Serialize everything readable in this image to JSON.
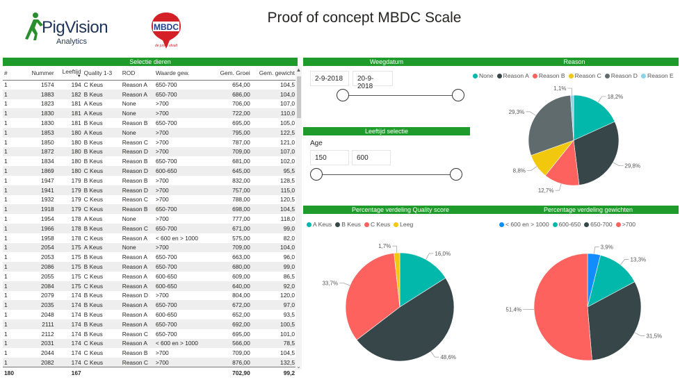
{
  "title": "Proof of concept MBDC Scale",
  "logos": {
    "pigvision_name": "PigVision",
    "pigvision_sub": "Analytics",
    "mbdc_name": "MBDC",
    "mbdc_tagline": "de juiste afvalt"
  },
  "sections": {
    "selectie": "Selectie dieren",
    "weegdatum": "Weegdatum",
    "reason": "Reason",
    "leeftijd": "Leeftijd selectie",
    "quality": "Percentage verdeling Quality score",
    "gewichten": "Percentage verdeling gewichten"
  },
  "table": {
    "headers": [
      "#",
      "Nummer",
      "Leeftijd",
      "Quality 1-3",
      "ROD",
      "Waarde gew.",
      "Gem. Groei",
      "Gem. gewicht"
    ],
    "rows": [
      [
        "1",
        "1574",
        "194",
        "C Keus",
        "Reason A",
        "650-700",
        "654,00",
        "104,5"
      ],
      [
        "1",
        "1883",
        "182",
        "B Keus",
        "Reason A",
        "650-700",
        "686,00",
        "104,0"
      ],
      [
        "1",
        "1823",
        "181",
        "A Keus",
        "None",
        ">700",
        "706,00",
        "107,0"
      ],
      [
        "1",
        "1830",
        "181",
        "A Keus",
        "None",
        ">700",
        "722,00",
        "110,0"
      ],
      [
        "1",
        "1830",
        "181",
        "B Keus",
        "Reason B",
        "650-700",
        "695,00",
        "105,0"
      ],
      [
        "1",
        "1853",
        "180",
        "A Keus",
        "None",
        ">700",
        "795,00",
        "122,5"
      ],
      [
        "1",
        "1850",
        "180",
        "B Keus",
        "Reason C",
        ">700",
        "787,00",
        "121,0"
      ],
      [
        "1",
        "1872",
        "180",
        "B Keus",
        "Reason D",
        ">700",
        "709,00",
        "107,0"
      ],
      [
        "1",
        "1834",
        "180",
        "B Keus",
        "Reason B",
        "650-700",
        "681,00",
        "102,0"
      ],
      [
        "1",
        "1869",
        "180",
        "C Keus",
        "Reason D",
        "600-650",
        "645,00",
        "95,5"
      ],
      [
        "1",
        "1947",
        "179",
        "B Keus",
        "Reason B",
        ">700",
        "832,00",
        "128,5"
      ],
      [
        "1",
        "1941",
        "179",
        "B Keus",
        "Reason D",
        ">700",
        "757,00",
        "115,0"
      ],
      [
        "1",
        "1932",
        "179",
        "C Keus",
        "Reason C",
        ">700",
        "788,00",
        "120,5"
      ],
      [
        "1",
        "1918",
        "179",
        "C Keus",
        "Reason B",
        "650-700",
        "698,00",
        "104,5"
      ],
      [
        "1",
        "1954",
        "178",
        "A Keus",
        "None",
        ">700",
        "777,00",
        "118,0"
      ],
      [
        "1",
        "1966",
        "178",
        "B Keus",
        "Reason C",
        "650-700",
        "671,00",
        "99,0"
      ],
      [
        "1",
        "1958",
        "178",
        "C Keus",
        "Reason A",
        "< 600 en > 1000",
        "575,00",
        "82,0"
      ],
      [
        "1",
        "2054",
        "175",
        "A Keus",
        "None",
        ">700",
        "709,00",
        "104,0"
      ],
      [
        "1",
        "2053",
        "175",
        "B Keus",
        "Reason A",
        "650-700",
        "663,00",
        "96,0"
      ],
      [
        "1",
        "2086",
        "175",
        "B Keus",
        "Reason A",
        "650-700",
        "680,00",
        "99,0"
      ],
      [
        "1",
        "2055",
        "175",
        "C Keus",
        "Reason A",
        "600-650",
        "609,00",
        "86,5"
      ],
      [
        "1",
        "2084",
        "175",
        "C Keus",
        "Reason A",
        "600-650",
        "640,00",
        "92,0"
      ],
      [
        "1",
        "2079",
        "174",
        "B Keus",
        "Reason D",
        ">700",
        "804,00",
        "120,0"
      ],
      [
        "1",
        "2035",
        "174",
        "B Keus",
        "Reason A",
        "650-700",
        "672,00",
        "97,0"
      ],
      [
        "1",
        "2048",
        "174",
        "B Keus",
        "Reason A",
        "600-650",
        "652,00",
        "93,5"
      ],
      [
        "1",
        "2111",
        "174",
        "B Keus",
        "Reason A",
        "650-700",
        "692,00",
        "100,5"
      ],
      [
        "1",
        "2112",
        "174",
        "B Keus",
        "Reason C",
        "650-700",
        "695,00",
        "101,0"
      ],
      [
        "1",
        "2031",
        "174",
        "C Keus",
        "Reason A",
        "< 600 en > 1000",
        "566,00",
        "78,5"
      ],
      [
        "1",
        "2044",
        "174",
        "C Keus",
        "Reason B",
        ">700",
        "709,00",
        "104,5"
      ],
      [
        "1",
        "2082",
        "174",
        "C Keus",
        "Reason C",
        ">700",
        "876,00",
        "132,5"
      ]
    ],
    "totals": [
      "180",
      "167",
      "",
      "",
      "",
      "702,90",
      "99,2"
    ]
  },
  "weegdatum": {
    "start": "2-9-2018",
    "end": "20-9-2018",
    "range_fraction": [
      0,
      1
    ]
  },
  "leeftijd": {
    "label": "Age",
    "min": "150",
    "max": "600",
    "range_fraction": [
      0,
      1
    ]
  },
  "charts": {
    "reason": {
      "legend": [
        "None",
        "Reason A",
        "Reason B",
        "Reason C",
        "Reason D",
        "Reason E"
      ],
      "colors": [
        "#01b8aa",
        "#374649",
        "#fd625e",
        "#f2c80f",
        "#5f6b6d",
        "#8ad4eb"
      ],
      "values": [
        18.2,
        29.8,
        12.7,
        8.8,
        29.3,
        1.1
      ],
      "labels": [
        "18,2%",
        "29,8%",
        "12,7%",
        "8,8%",
        "29,3%",
        "1,1%"
      ]
    },
    "quality": {
      "legend": [
        "A Keus",
        "B Keus",
        "C Keus",
        "Leeg"
      ],
      "colors": [
        "#01b8aa",
        "#374649",
        "#fd625e",
        "#f2c80f"
      ],
      "values": [
        16.0,
        48.6,
        33.7,
        1.7
      ],
      "labels": [
        "16,0%",
        "48,6%",
        "33,7%",
        "1,7%"
      ]
    },
    "gewichten": {
      "legend": [
        "< 600 en > 1000",
        "600-650",
        "650-700",
        ">700"
      ],
      "colors": [
        "#118dff",
        "#01b8aa",
        "#374649",
        "#fd625e"
      ],
      "values": [
        3.9,
        13.3,
        31.5,
        51.4
      ],
      "labels": [
        "3,9%",
        "13,3%",
        "31,5%",
        "51,4%"
      ]
    }
  }
}
